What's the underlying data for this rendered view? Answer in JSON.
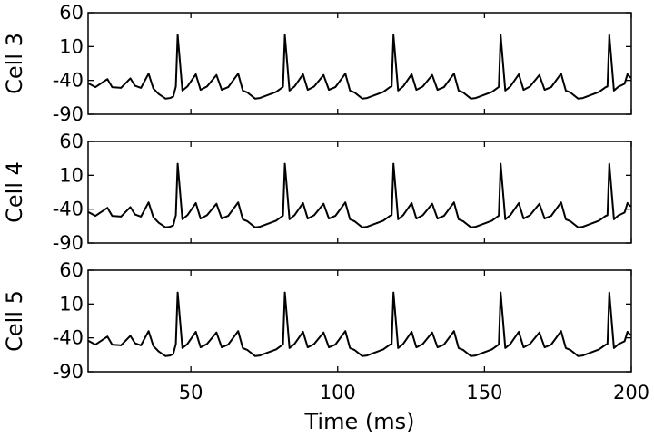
{
  "chart_data": [
    {
      "type": "line",
      "ylabel": "Cell 3",
      "xlim": [
        15,
        200
      ],
      "ylim": [
        -90,
        60
      ],
      "yticks": [
        60,
        10,
        -40,
        -90
      ],
      "spike_times": [
        45.5,
        82,
        119,
        155.5,
        192.5
      ],
      "peak": 27,
      "trough_after_spike": -55,
      "minor_bump_peak": -33,
      "baseline": -50,
      "dip_min": -67
    },
    {
      "type": "line",
      "ylabel": "Cell 4",
      "xlim": [
        15,
        200
      ],
      "ylim": [
        -90,
        60
      ],
      "yticks": [
        60,
        10,
        -40,
        -90
      ],
      "spike_times": [
        45.5,
        82,
        119,
        155.5,
        192.5
      ],
      "peak": 27,
      "trough_after_spike": -55,
      "minor_bump_peak": -33,
      "baseline": -50,
      "dip_min": -67
    },
    {
      "type": "line",
      "ylabel": "Cell 5",
      "xlabel": "Time (ms)",
      "xlim": [
        15,
        200
      ],
      "ylim": [
        -90,
        60
      ],
      "yticks": [
        60,
        10,
        -40,
        -90
      ],
      "xticks": [
        50,
        100,
        150,
        200
      ],
      "spike_times": [
        45.5,
        82,
        119,
        155.5,
        192.5
      ],
      "peak": 27,
      "trough_after_spike": -55,
      "minor_bump_peak": -33,
      "baseline": -50,
      "dip_min": -67
    }
  ]
}
